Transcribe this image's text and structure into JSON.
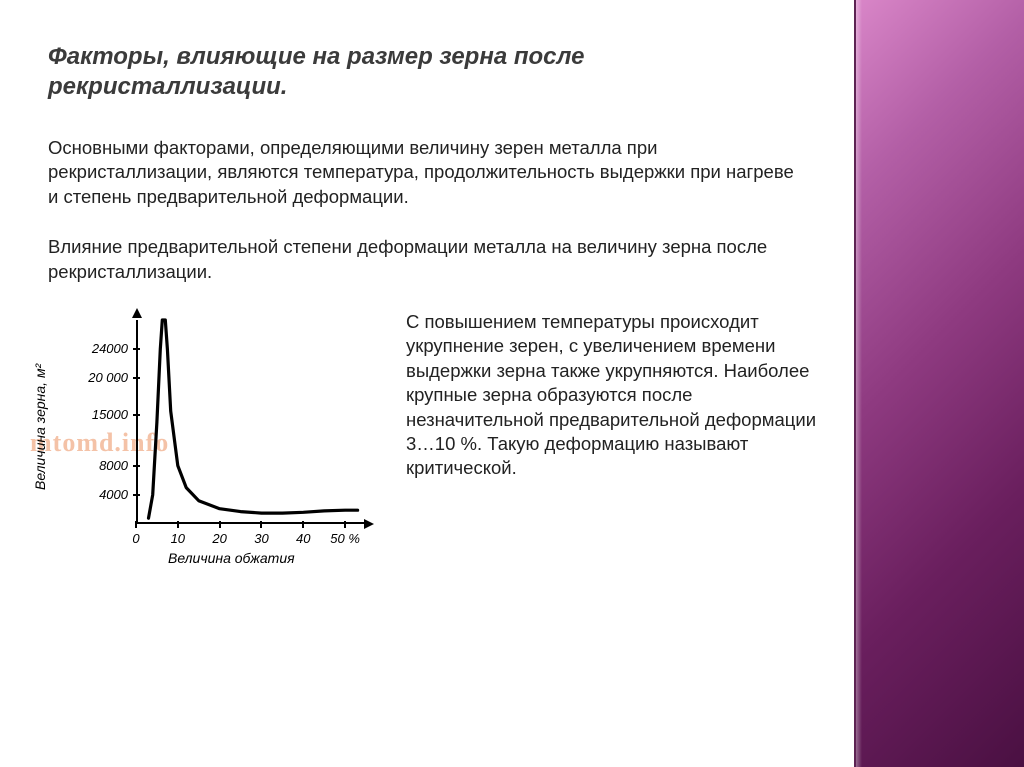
{
  "title": "Факторы, влияющие на размер зерна после рекристаллизации.",
  "paragraph1": "Основными факторами, определяющими величину зерен металла при рекристаллизации, являются температура, продолжительность выдержки при нагреве и степень предварительной деформации.",
  "paragraph2": "Влияние предварительной степени деформации металла на величину зерна после рекристаллизации.",
  "side_paragraph": "С повышением температуры происходит укрупнение зерен, с увеличением времени выдержки зерна также укрупняются. Наиболее крупные зерна образуются после незначительной предварительной деформации 3…10 %. Такую деформацию называют критической.",
  "chart": {
    "type": "line",
    "x_label": "Величина обжатия",
    "y_label": "Величина зерна, м²",
    "y_unit_superscript": "2",
    "watermark": "mtomd.info",
    "x_ticks": [
      0,
      10,
      20,
      30,
      40,
      50
    ],
    "x_tick_labels": [
      "0",
      "10",
      "20",
      "30",
      "40",
      "50 %"
    ],
    "y_ticks": [
      4000,
      8000,
      15000,
      20000,
      24000
    ],
    "y_tick_labels": [
      "4000",
      "8000",
      "15000",
      "20 000",
      "24000"
    ],
    "x_range": [
      0,
      55
    ],
    "y_range": [
      0,
      28000
    ],
    "curve_points": [
      [
        3,
        800
      ],
      [
        4,
        4000
      ],
      [
        5,
        14000
      ],
      [
        5.8,
        24000
      ],
      [
        6.3,
        28000
      ],
      [
        7,
        28000
      ],
      [
        7.5,
        24000
      ],
      [
        8.3,
        15500
      ],
      [
        10,
        8000
      ],
      [
        12,
        5000
      ],
      [
        15,
        3200
      ],
      [
        20,
        2100
      ],
      [
        25,
        1700
      ],
      [
        30,
        1500
      ],
      [
        35,
        1500
      ],
      [
        40,
        1600
      ],
      [
        45,
        1800
      ],
      [
        50,
        1900
      ],
      [
        53,
        1900
      ]
    ],
    "colors": {
      "axis": "#000000",
      "curve": "#000000",
      "background": "#ffffff",
      "watermark": "rgba(230,120,60,.45)"
    },
    "line_width": 3.2,
    "title_fontsize": 24,
    "body_fontsize": 18.5,
    "axis_fontsize": 14,
    "tick_fontsize": 13
  },
  "accent_gradient": [
    "#d986c8",
    "#b35fa6",
    "#8e3a80",
    "#6a1f5e",
    "#4a1042"
  ]
}
